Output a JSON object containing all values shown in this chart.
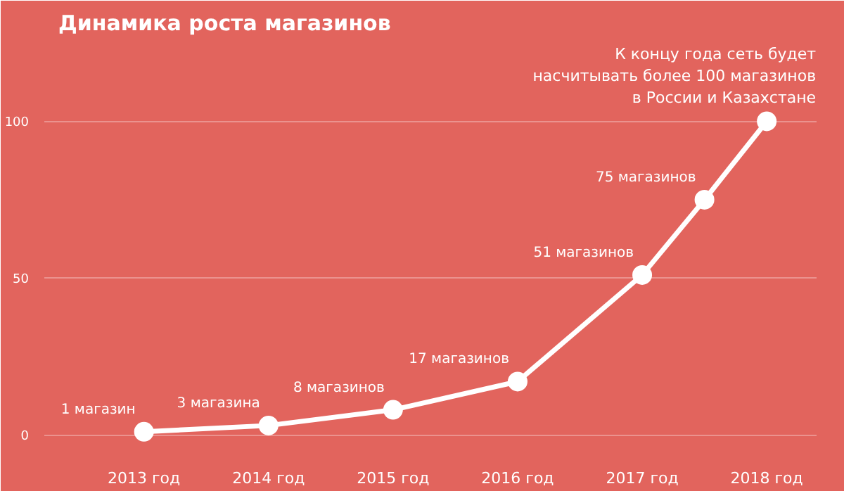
{
  "chart_data": {
    "type": "line",
    "title": "Динамика роста магазинов",
    "x": [
      2013,
      2014,
      2015,
      2016,
      2017,
      2017.5,
      2018
    ],
    "values": [
      1,
      3,
      8,
      17,
      51,
      75,
      100
    ],
    "value_labels": [
      "1 магазин",
      "3 магазина",
      "8 магазинов",
      "17 магазинов",
      "51 магазинов",
      "75 магазинов",
      null
    ],
    "color": "#ffffff",
    "marker": "circle",
    "line_style": "solid",
    "grid": "y",
    "xlim": [
      2012.2,
      2018.4
    ],
    "ylim": [
      -6,
      125
    ],
    "xticks": [
      {
        "value": 2013,
        "label": "2013 год"
      },
      {
        "value": 2014,
        "label": "2014 год"
      },
      {
        "value": 2015,
        "label": "2015 год"
      },
      {
        "value": 2016,
        "label": "2016 год"
      },
      {
        "value": 2017,
        "label": "2017 год"
      },
      {
        "value": 2018,
        "label": "2018 год"
      }
    ],
    "yticks": [
      0,
      50,
      100
    ],
    "annotations": [
      {
        "text": "К концу года сеть будет\nнасчитывать более 100 магазинов\nв России и Казахстане",
        "x": 2018,
        "y": 100
      }
    ]
  }
}
